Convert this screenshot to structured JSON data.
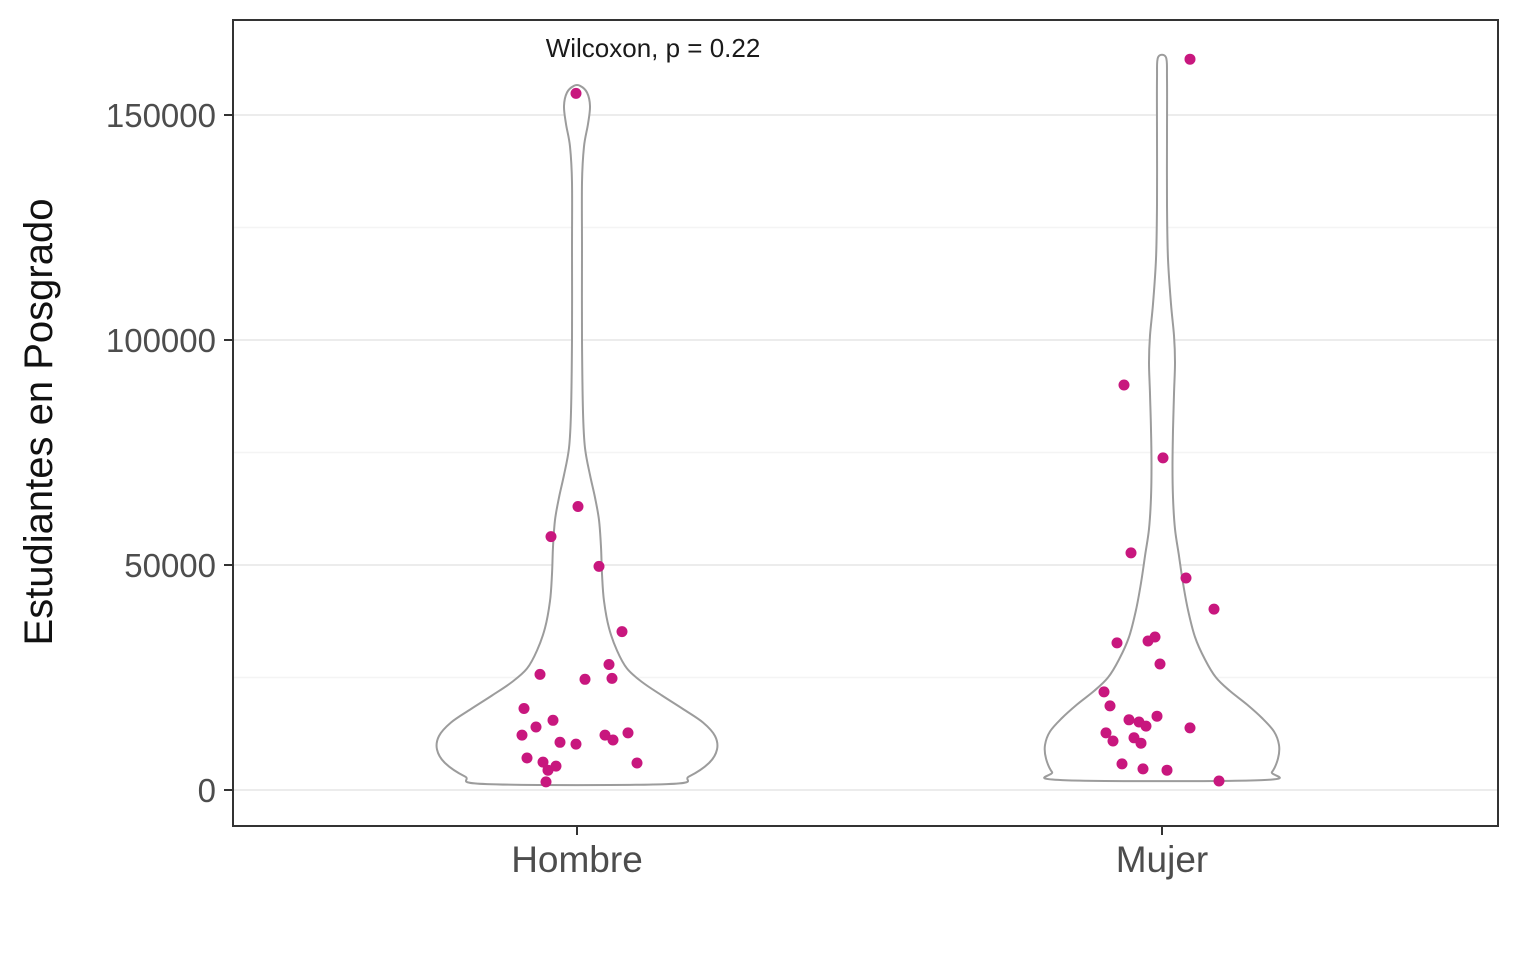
{
  "chart_data": {
    "type": "violin",
    "subtype": "violin outlines with jittered points",
    "title": "",
    "annotation": "Wilcoxon, p = 0.22",
    "xlabel": "",
    "ylabel": "Estudiantes en Posgrado",
    "categories": [
      "Hombre",
      "Mujer"
    ],
    "legend": "none",
    "y_axis": {
      "ticks": [
        {
          "value": 0,
          "label": "0"
        },
        {
          "value": 50000,
          "label": "50000"
        },
        {
          "value": 100000,
          "label": "100000"
        },
        {
          "value": 150000,
          "label": "150000"
        }
      ],
      "minor_ticks": [
        25000,
        75000,
        125000
      ],
      "range_shown": [
        -8000,
        171000
      ]
    },
    "grid": {
      "horizontal_major": true,
      "horizontal_minor": true,
      "vertical": false
    },
    "colors": {
      "point": "#C8177E",
      "violin_outline": "#9C9C9C",
      "violin_fill": "#FFFFFF",
      "grid_major": "#ECECEC",
      "grid_minor": "#F4F4F4",
      "panel_border": "#333333",
      "tick_mark": "#333333",
      "tick_label": "#4D4D4D",
      "text": "#1A1A1A"
    },
    "groups": [
      {
        "name": "Hombre",
        "violin_profile": [
          [
            1300,
            90
          ],
          [
            3000,
            112
          ],
          [
            6000,
            132
          ],
          [
            9000,
            140
          ],
          [
            12000,
            138
          ],
          [
            15000,
            126
          ],
          [
            18000,
            106
          ],
          [
            21000,
            85
          ],
          [
            24000,
            65
          ],
          [
            27000,
            50
          ],
          [
            31000,
            40
          ],
          [
            36000,
            32
          ],
          [
            42000,
            27
          ],
          [
            48000,
            25
          ],
          [
            54000,
            24
          ],
          [
            60000,
            22
          ],
          [
            65000,
            18
          ],
          [
            70000,
            13
          ],
          [
            76000,
            8
          ],
          [
            84000,
            6
          ],
          [
            100000,
            5
          ],
          [
            120000,
            5
          ],
          [
            135000,
            5
          ],
          [
            143000,
            7
          ],
          [
            148000,
            11
          ],
          [
            152000,
            13
          ],
          [
            155000,
            10
          ],
          [
            156500,
            3
          ]
        ],
        "points": [
          [
            -1,
            154800
          ],
          [
            1,
            63000
          ],
          [
            -26,
            56300
          ],
          [
            22,
            49700
          ],
          [
            45,
            35200
          ],
          [
            32,
            27900
          ],
          [
            -37,
            25700
          ],
          [
            8,
            24600
          ],
          [
            35,
            24800
          ],
          [
            -53,
            18100
          ],
          [
            -41,
            14000
          ],
          [
            -24,
            15500
          ],
          [
            -55,
            12200
          ],
          [
            -17,
            10600
          ],
          [
            -1,
            10200
          ],
          [
            28,
            12200
          ],
          [
            51,
            12700
          ],
          [
            36,
            11100
          ],
          [
            -50,
            7100
          ],
          [
            -34,
            6200
          ],
          [
            -29,
            4400
          ],
          [
            -21,
            5300
          ],
          [
            60,
            6000
          ],
          [
            -31,
            1800
          ]
        ]
      },
      {
        "name": "Mujer",
        "violin_profile": [
          [
            2200,
            100
          ],
          [
            4000,
            110
          ],
          [
            7000,
            116
          ],
          [
            10000,
            117
          ],
          [
            13000,
            112
          ],
          [
            16000,
            100
          ],
          [
            19000,
            85
          ],
          [
            22000,
            68
          ],
          [
            25000,
            54
          ],
          [
            29000,
            43
          ],
          [
            34000,
            33
          ],
          [
            40000,
            26
          ],
          [
            46000,
            21
          ],
          [
            52000,
            17
          ],
          [
            58000,
            13
          ],
          [
            65000,
            11
          ],
          [
            72000,
            10.5
          ],
          [
            80000,
            11
          ],
          [
            88000,
            12
          ],
          [
            95000,
            13
          ],
          [
            101000,
            12
          ],
          [
            108000,
            9
          ],
          [
            118000,
            6
          ],
          [
            130000,
            5
          ],
          [
            145000,
            5
          ],
          [
            158000,
            5
          ],
          [
            162800,
            4
          ]
        ],
        "points": [
          [
            28,
            162400
          ],
          [
            -38,
            90000
          ],
          [
            1,
            73800
          ],
          [
            -31,
            52700
          ],
          [
            24,
            47100
          ],
          [
            52,
            40200
          ],
          [
            -45,
            32700
          ],
          [
            -14,
            33100
          ],
          [
            -7,
            34000
          ],
          [
            -2,
            28000
          ],
          [
            -58,
            21800
          ],
          [
            -52,
            18700
          ],
          [
            -5,
            16400
          ],
          [
            -33,
            15600
          ],
          [
            -23,
            15100
          ],
          [
            -16,
            14200
          ],
          [
            28,
            13800
          ],
          [
            -56,
            12700
          ],
          [
            -49,
            10900
          ],
          [
            -28,
            11600
          ],
          [
            -21,
            10400
          ],
          [
            -40,
            5800
          ],
          [
            -19,
            4700
          ],
          [
            5,
            4400
          ],
          [
            57,
            2000
          ]
        ]
      }
    ]
  }
}
